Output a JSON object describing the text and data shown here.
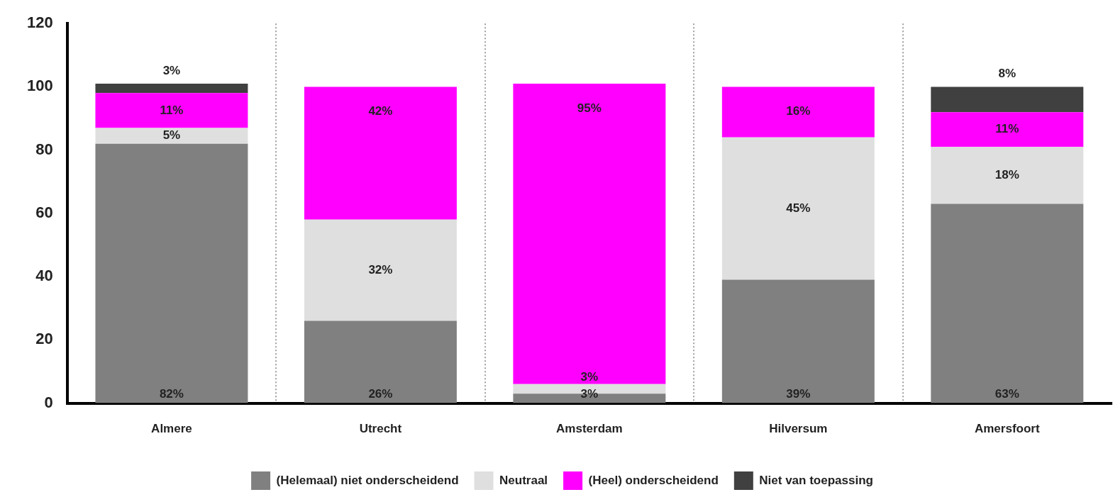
{
  "chart_data": {
    "type": "bar",
    "stacked": true,
    "categories": [
      "Almere",
      "Utrecht",
      "Amsterdam",
      "Hilversum",
      "Amersfoort"
    ],
    "series": [
      {
        "name": "(Helemaal) niet onderscheidend",
        "color": "#808080",
        "values": [
          82,
          26,
          3,
          39,
          63
        ],
        "value_labels": [
          "82%",
          "26%",
          "3%",
          "39%",
          "63%"
        ]
      },
      {
        "name": "Neutraal",
        "color": "#dfdfdf",
        "values": [
          5,
          32,
          3,
          45,
          18
        ],
        "value_labels": [
          "5%",
          "32%",
          "3%",
          "45%",
          "18%"
        ]
      },
      {
        "name": "(Heel) onderscheidend",
        "color": "#ff00ff",
        "values": [
          11,
          42,
          95,
          16,
          11
        ],
        "value_labels": [
          "11%",
          "42%",
          "95%",
          "16%",
          "11%"
        ]
      },
      {
        "name": "Niet van toepassing",
        "color": "#404040",
        "values": [
          3,
          null,
          null,
          null,
          8
        ],
        "value_labels": [
          "3%",
          null,
          null,
          null,
          "8%"
        ]
      }
    ],
    "ylim": [
      0,
      120
    ],
    "yticks": [
      0,
      20,
      40,
      60,
      80,
      100,
      120
    ],
    "grid": "x",
    "legend": "bottom"
  }
}
